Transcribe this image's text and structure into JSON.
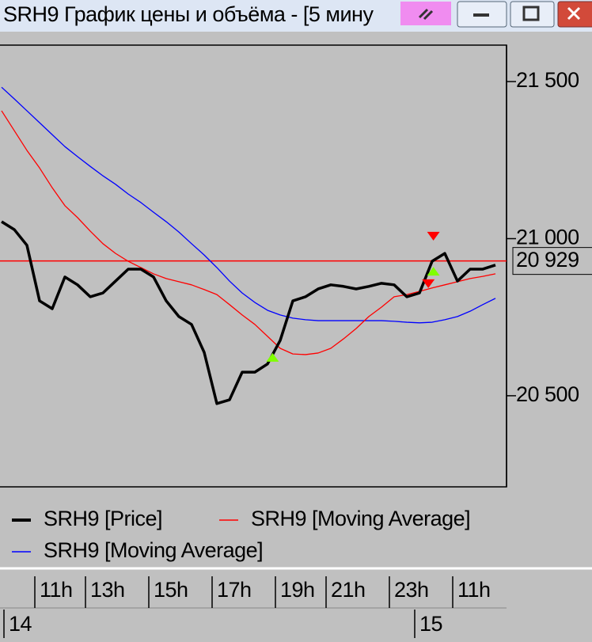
{
  "window": {
    "title": "SRH9 График цены и объёма - [5 мину"
  },
  "chart_data": {
    "type": "line",
    "categories": [
      null,
      null,
      null,
      "11h",
      null,
      null,
      null,
      "13h",
      null,
      null,
      null,
      null,
      "15h",
      null,
      null,
      null,
      null,
      "17h",
      null,
      null,
      null,
      null,
      "19h",
      null,
      null,
      null,
      "21h",
      null,
      null,
      null,
      null,
      "23h",
      null,
      null,
      null,
      null,
      "11h",
      null,
      null,
      null
    ],
    "dates": [
      "14",
      null,
      null,
      null,
      null,
      null,
      null,
      null,
      null,
      null,
      null,
      null,
      null,
      null,
      null,
      null,
      null,
      null,
      null,
      null,
      null,
      null,
      null,
      null,
      null,
      null,
      null,
      null,
      null,
      null,
      null,
      null,
      null,
      "15",
      null,
      null,
      null,
      null,
      null,
      null
    ],
    "series": [
      {
        "name": "SRH9 [Price]",
        "color": "#000000",
        "values": [
          21054,
          21029,
          20979,
          20802,
          20777,
          20878,
          20853,
          20815,
          20827,
          20865,
          20903,
          20903,
          20878,
          20802,
          20752,
          20727,
          20638,
          20475,
          20487,
          20575,
          20575,
          20601,
          20676,
          20802,
          20815,
          20840,
          20853,
          20848,
          20840,
          20848,
          20858,
          20853,
          20815,
          20827,
          20928,
          20953,
          20865,
          20903,
          20903,
          20916
        ]
      },
      {
        "name": "SRH9 [Moving Average]",
        "color": "#ff0000",
        "values": [
          21407,
          21344,
          21281,
          21225,
          21162,
          21105,
          21067,
          21024,
          20984,
          20953,
          20928,
          20908,
          20888,
          20873,
          20863,
          20853,
          20838,
          20822,
          20790,
          20757,
          20727,
          20689,
          20651,
          20633,
          20631,
          20636,
          20651,
          20681,
          20714,
          20752,
          20782,
          20815,
          20822,
          20832,
          20843,
          20853,
          20863,
          20873,
          20880,
          20888
        ]
      },
      {
        "name": "SRH9 [Moving Average]",
        "color": "#0000ff",
        "values": [
          21482,
          21445,
          21407,
          21369,
          21331,
          21293,
          21261,
          21230,
          21200,
          21173,
          21142,
          21115,
          21084,
          21054,
          21021,
          20984,
          20948,
          20908,
          20865,
          20827,
          20797,
          20772,
          20757,
          20747,
          20742,
          20739,
          20739,
          20739,
          20739,
          20739,
          20739,
          20737,
          20734,
          20732,
          20734,
          20742,
          20752,
          20769,
          20790,
          20810
        ]
      }
    ],
    "markers": [
      {
        "x": 21.4,
        "value": 20621,
        "shape": "up",
        "color": "#80ff00"
      },
      {
        "x": 33.7,
        "value": 20858,
        "shape": "down",
        "color": "#ff0000"
      },
      {
        "x": 34.1,
        "value": 20895,
        "shape": "up",
        "color": "#80ff00"
      },
      {
        "x": 34.1,
        "value": 21009,
        "shape": "down",
        "color": "#ff0000"
      }
    ],
    "last_price": {
      "value": 20929,
      "label": "20 929",
      "color": "#ff0000"
    },
    "ylim": [
      20210,
      21616
    ],
    "yticks": [
      {
        "value": 20500,
        "label": "20 500"
      },
      {
        "value": 21000,
        "label": "21 000"
      },
      {
        "value": 21500,
        "label": "21 500"
      }
    ]
  }
}
